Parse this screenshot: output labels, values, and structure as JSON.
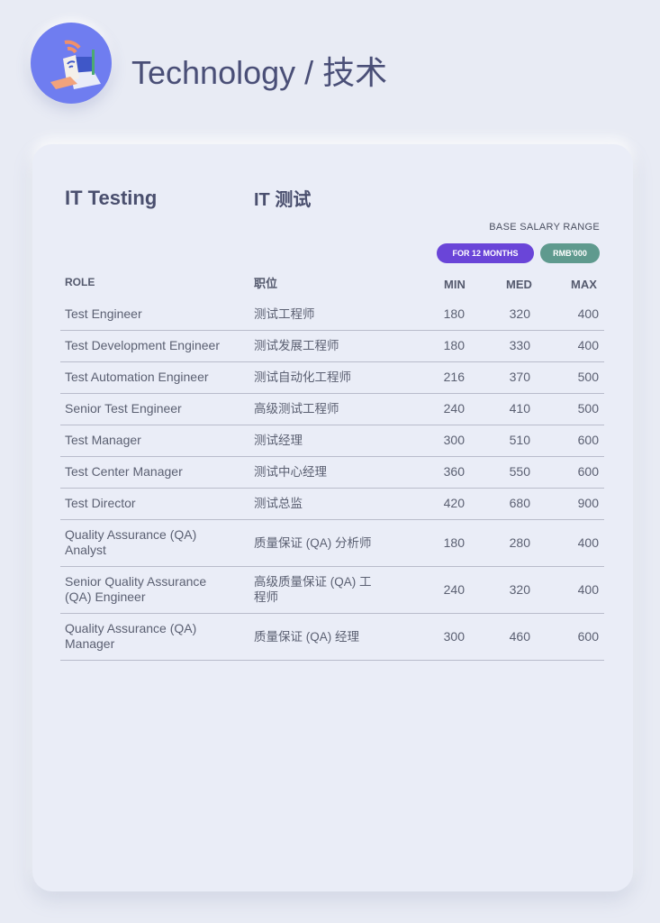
{
  "header": {
    "title": "Technology / 技术",
    "icon": "wifi-laptop-router-icon"
  },
  "card": {
    "title_en": "IT Testing",
    "title_cn": "IT 测试",
    "salary_label": "BASE SALARY RANGE",
    "badge_period": "FOR 12 MONTHS",
    "badge_unit": "RMB'000",
    "columns": {
      "role": "ROLE",
      "role_cn": "职位",
      "min": "MIN",
      "med": "MED",
      "max": "MAX"
    },
    "rows": [
      {
        "role": "Test Engineer",
        "cn": "测试工程师",
        "min": "180",
        "med": "320",
        "max": "400"
      },
      {
        "role": "Test Development Engineer",
        "cn": "测试发展工程师",
        "min": "180",
        "med": "330",
        "max": "400"
      },
      {
        "role": "Test Automation Engineer",
        "cn": "测试自动化工程师",
        "min": "216",
        "med": "370",
        "max": "500"
      },
      {
        "role": "Senior Test Engineer",
        "cn": "高级测试工程师",
        "min": "240",
        "med": "410",
        "max": "500"
      },
      {
        "role": "Test Manager",
        "cn": "测试经理",
        "min": "300",
        "med": "510",
        "max": "600"
      },
      {
        "role": "Test Center Manager",
        "cn": "测试中心经理",
        "min": "360",
        "med": "550",
        "max": "600"
      },
      {
        "role": "Test Director",
        "cn": "测试总监",
        "min": "420",
        "med": "680",
        "max": "900"
      },
      {
        "role": "Quality Assurance (QA) Analyst",
        "cn": "质量保证 (QA) 分析师",
        "min": "180",
        "med": "280",
        "max": "400"
      },
      {
        "role": "Senior Quality Assurance (QA) Engineer",
        "cn": "高级质量保证 (QA) 工程师",
        "min": "240",
        "med": "320",
        "max": "400"
      },
      {
        "role": "Quality Assurance (QA) Manager",
        "cn": "质量保证 (QA) 经理",
        "min": "300",
        "med": "460",
        "max": "600"
      }
    ]
  },
  "colors": {
    "accent": "#6a45d8",
    "unit_badge": "#5f9a8e"
  }
}
